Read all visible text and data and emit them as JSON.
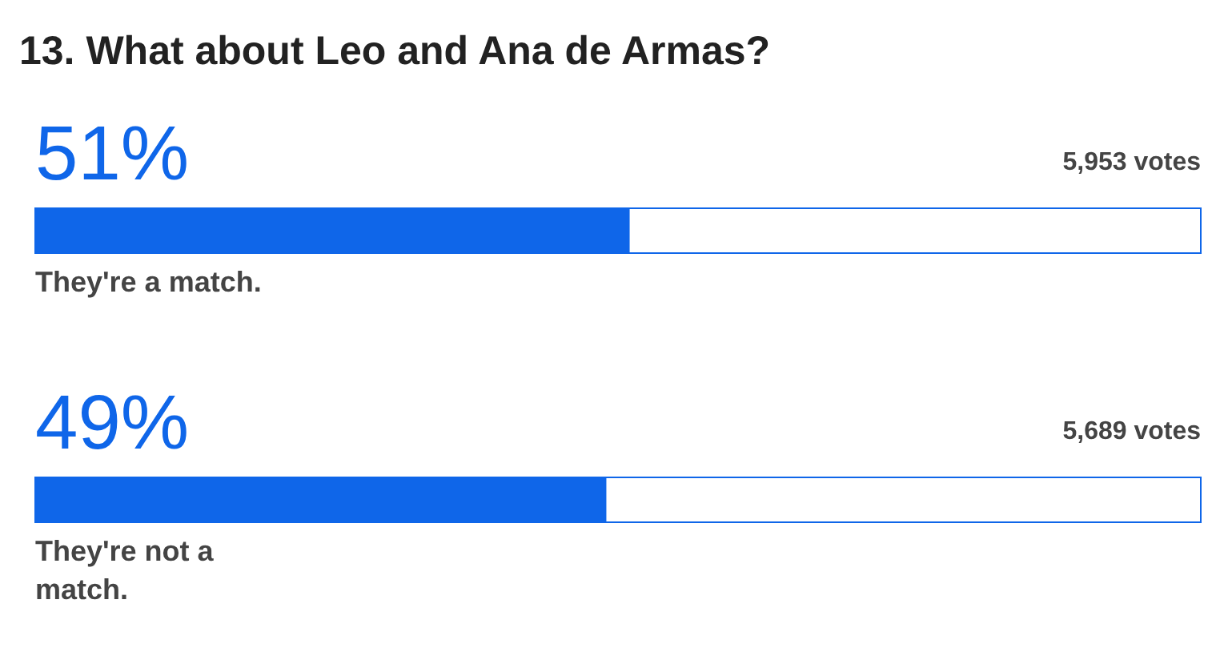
{
  "chart_data": {
    "type": "bar",
    "orientation": "horizontal",
    "title": "13. What about Leo and Ana de Armas?",
    "categories": [
      "They're a match.",
      "They're not a match."
    ],
    "values": [
      51,
      49
    ],
    "value_labels": [
      "51%",
      "49%"
    ],
    "color": "#0f66e9",
    "xlim": [
      0,
      100
    ],
    "annotations": [
      "5,953 votes",
      "5,689 votes"
    ]
  }
}
